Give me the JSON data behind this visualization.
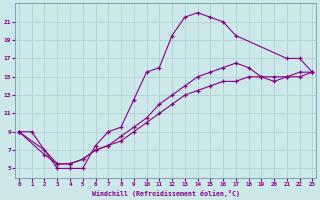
{
  "xlabel": "Windchill (Refroidissement éolien,°C)",
  "bg_color": "#cce8e8",
  "line_color": "#880088",
  "grid_color": "#aacece",
  "curve1_x": [
    0,
    1,
    3,
    4,
    5,
    6,
    7,
    8,
    9,
    10,
    11,
    12,
    13,
    14,
    15,
    16,
    17,
    21,
    22,
    23
  ],
  "curve1_y": [
    9,
    9,
    5,
    5,
    5,
    7.5,
    9,
    9.5,
    12.5,
    15.5,
    16,
    19.5,
    21.5,
    22,
    21.5,
    21,
    19.5,
    17,
    17,
    15.5
  ],
  "curve2_x": [
    0,
    2,
    3,
    4,
    5,
    6,
    7,
    8,
    9,
    10,
    11,
    12,
    13,
    14,
    15,
    16,
    17,
    18,
    19,
    20,
    21,
    22,
    23
  ],
  "curve2_y": [
    9,
    6.5,
    5.5,
    5.5,
    6,
    7,
    7.5,
    8,
    9,
    10,
    11,
    12,
    13,
    13.5,
    14,
    14.5,
    14.5,
    15,
    15,
    15,
    15,
    15.5,
    15.5
  ],
  "curve3_x": [
    0,
    2,
    3,
    4,
    5,
    6,
    7,
    8,
    9,
    10,
    11,
    12,
    13,
    14,
    15,
    16,
    17,
    18,
    19,
    20,
    21,
    22,
    23
  ],
  "curve3_y": [
    9,
    7,
    5.5,
    5.5,
    6,
    7,
    7.5,
    8.5,
    9.5,
    10.5,
    12,
    13,
    14,
    15,
    15.5,
    16,
    16.5,
    16,
    15,
    14.5,
    15,
    15,
    15.5
  ],
  "xlim": [
    -0.3,
    23.3
  ],
  "ylim": [
    4.0,
    23.0
  ],
  "yticks": [
    5,
    7,
    9,
    11,
    13,
    15,
    17,
    19,
    21
  ],
  "xticks": [
    0,
    1,
    2,
    3,
    4,
    5,
    6,
    7,
    8,
    9,
    10,
    11,
    12,
    13,
    14,
    15,
    16,
    17,
    18,
    19,
    20,
    21,
    22,
    23
  ]
}
